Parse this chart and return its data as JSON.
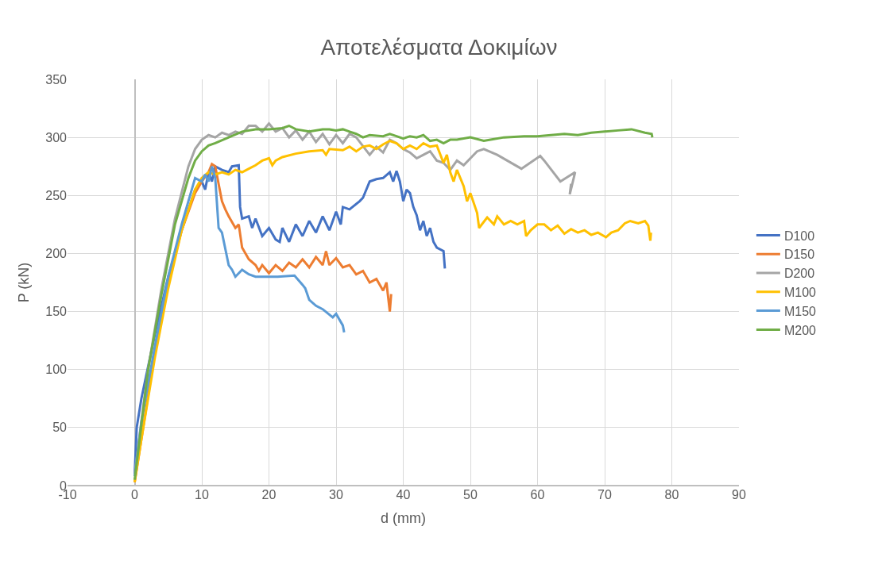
{
  "chart_data": {
    "type": "line",
    "title": "Αποτελέσματα Δοκιμίων",
    "xlabel": "d (mm)",
    "ylabel": "P (kN)",
    "xlim": [
      -10,
      90
    ],
    "xticks": [
      -10,
      0,
      10,
      20,
      30,
      40,
      50,
      60,
      70,
      80,
      90
    ],
    "ylim": [
      0,
      350
    ],
    "yticks": [
      0,
      50,
      100,
      150,
      200,
      250,
      300,
      350
    ],
    "grid": true,
    "legend": "right",
    "marker": "none",
    "series": [
      {
        "name": "D100",
        "color": "#4472c4",
        "x": [
          0,
          0.3,
          1,
          3,
          5,
          7,
          9,
          10,
          10.5,
          11,
          11.5,
          12,
          13,
          14,
          14.5,
          15.5,
          15.7,
          16,
          17,
          17.5,
          18,
          19,
          20,
          21,
          21.6,
          22,
          23,
          24,
          25,
          26,
          27,
          28,
          29,
          30,
          30.7,
          31,
          32,
          33.5,
          34,
          35,
          36,
          37,
          38,
          38.5,
          39,
          39.5,
          40,
          40.5,
          41,
          41.5,
          42,
          42.5,
          43,
          43.5,
          44,
          44.5,
          45,
          46,
          46.2
        ],
        "values": [
          10,
          50,
          75,
          130,
          180,
          220,
          255,
          262,
          255,
          270,
          262,
          275,
          272,
          270,
          275,
          276,
          240,
          230,
          232,
          222,
          230,
          215,
          222,
          212,
          210,
          222,
          210,
          225,
          215,
          228,
          218,
          232,
          220,
          236,
          225,
          240,
          238,
          245,
          248,
          262,
          264,
          265,
          270,
          262,
          271,
          262,
          245,
          255,
          252,
          240,
          233,
          220,
          228,
          215,
          222,
          210,
          205,
          202,
          187
        ]
      },
      {
        "name": "D150",
        "color": "#ed7d31",
        "x": [
          0,
          1,
          3,
          5,
          7,
          9,
          10,
          11,
          11.5,
          12,
          12.5,
          13,
          13.5,
          14,
          15,
          15.5,
          16,
          17,
          18,
          18.5,
          19,
          20,
          21,
          22,
          23,
          24,
          25,
          26,
          27,
          28,
          28.5,
          29,
          30,
          31,
          32,
          33,
          34,
          35,
          36,
          37,
          37.5,
          38,
          38.2
        ],
        "values": [
          3,
          40,
          115,
          175,
          220,
          252,
          262,
          270,
          277,
          275,
          260,
          245,
          238,
          232,
          222,
          225,
          205,
          195,
          190,
          185,
          190,
          183,
          190,
          185,
          192,
          188,
          195,
          188,
          197,
          190,
          202,
          190,
          196,
          188,
          190,
          182,
          185,
          175,
          178,
          168,
          175,
          150,
          165
        ]
      },
      {
        "name": "D200",
        "color": "#a5a5a5",
        "x": [
          0,
          2,
          4,
          6,
          8,
          9,
          10,
          11,
          12,
          13,
          14,
          15,
          16,
          17,
          18,
          19,
          20,
          21,
          22,
          23,
          24,
          25,
          26,
          27,
          28,
          29,
          30,
          31,
          32,
          33,
          35,
          36,
          37,
          38,
          39,
          40,
          41,
          42,
          43,
          44,
          45,
          46,
          47,
          48,
          49,
          50,
          51,
          52,
          54,
          57.6,
          60.4,
          61,
          63.4,
          65.6,
          64.8,
          65
        ],
        "values": [
          10,
          100,
          170,
          230,
          275,
          290,
          298,
          302,
          300,
          304,
          302,
          305,
          303,
          310,
          310,
          305,
          312,
          305,
          308,
          300,
          306,
          298,
          305,
          296,
          303,
          294,
          302,
          295,
          303,
          300,
          285,
          292,
          287,
          298,
          295,
          290,
          287,
          282,
          285,
          288,
          280,
          278,
          272,
          280,
          276,
          282,
          288,
          290,
          285,
          273,
          284,
          280,
          262,
          270,
          251,
          260
        ]
      },
      {
        "name": "M100",
        "color": "#ffc000",
        "x": [
          0,
          1,
          3,
          5,
          7,
          9,
          10,
          11,
          12,
          13,
          14,
          15,
          16,
          17,
          18,
          19,
          20,
          20.5,
          21,
          22,
          24,
          26,
          28,
          28.5,
          29,
          31,
          32,
          33,
          34,
          35,
          36,
          37,
          38,
          39,
          40,
          41,
          42,
          43,
          44,
          45,
          46,
          46.5,
          47,
          47.5,
          48,
          49,
          49.5,
          50,
          51,
          51.3,
          52.5,
          53.5,
          54,
          55,
          56,
          57,
          58,
          58.3,
          59,
          60,
          61,
          62,
          63,
          64,
          65,
          66,
          67,
          68,
          69,
          70.2,
          71,
          72,
          73,
          73.8,
          75,
          76,
          76.5,
          76.8,
          76.9
        ],
        "values": [
          3,
          40,
          110,
          170,
          220,
          255,
          265,
          270,
          268,
          270,
          268,
          272,
          270,
          273,
          276,
          280,
          282,
          276,
          280,
          283,
          286,
          288,
          289,
          285,
          290,
          289,
          292,
          288,
          292,
          293,
          290,
          294,
          297,
          295,
          290,
          293,
          290,
          295,
          292,
          293,
          278,
          285,
          270,
          262,
          272,
          258,
          245,
          252,
          235,
          222,
          231,
          225,
          232,
          225,
          228,
          225,
          228,
          215,
          220,
          225,
          225,
          220,
          224,
          217,
          221,
          218,
          220,
          216,
          218,
          214,
          218,
          220,
          226,
          228,
          226,
          228,
          224,
          211,
          218
        ]
      },
      {
        "name": "M150",
        "color": "#5b9bd5",
        "x": [
          0,
          1,
          3,
          5,
          7,
          9,
          10,
          10.5,
          11,
          11.5,
          12,
          12.5,
          13,
          14,
          14.5,
          15,
          16,
          17,
          18,
          20,
          21.3,
          23.8,
          25,
          25.4,
          26,
          27,
          28,
          29.5,
          30,
          31,
          31.2
        ],
        "values": [
          8,
          55,
          120,
          180,
          225,
          265,
          262,
          268,
          262,
          275,
          265,
          222,
          218,
          190,
          186,
          180,
          186,
          182,
          180,
          180,
          180,
          181,
          173,
          170,
          160,
          155,
          152,
          145,
          148,
          138,
          132
        ]
      },
      {
        "name": "M200",
        "color": "#70ad47",
        "x": [
          0,
          2,
          4,
          6,
          8,
          9,
          10,
          11,
          12,
          14,
          16,
          18,
          20,
          22,
          23,
          24,
          26,
          28,
          29,
          30,
          31,
          32,
          33,
          34,
          35,
          37,
          38,
          39,
          40,
          41,
          42,
          43,
          44,
          45,
          46,
          47,
          48,
          50,
          52,
          53,
          55,
          58,
          60,
          62,
          64,
          66,
          68,
          70,
          72,
          74,
          76,
          77,
          77.1
        ],
        "values": [
          5,
          100,
          165,
          225,
          265,
          280,
          288,
          293,
          295,
          300,
          305,
          307,
          307,
          308,
          310,
          307,
          305,
          307,
          307,
          306,
          307,
          305,
          303,
          300,
          302,
          301,
          303,
          301,
          299,
          301,
          300,
          302,
          297,
          298,
          295,
          298,
          298,
          300,
          297,
          298,
          300,
          301,
          301,
          302,
          303,
          302,
          304,
          305,
          306,
          307,
          304,
          303,
          300
        ]
      }
    ]
  }
}
